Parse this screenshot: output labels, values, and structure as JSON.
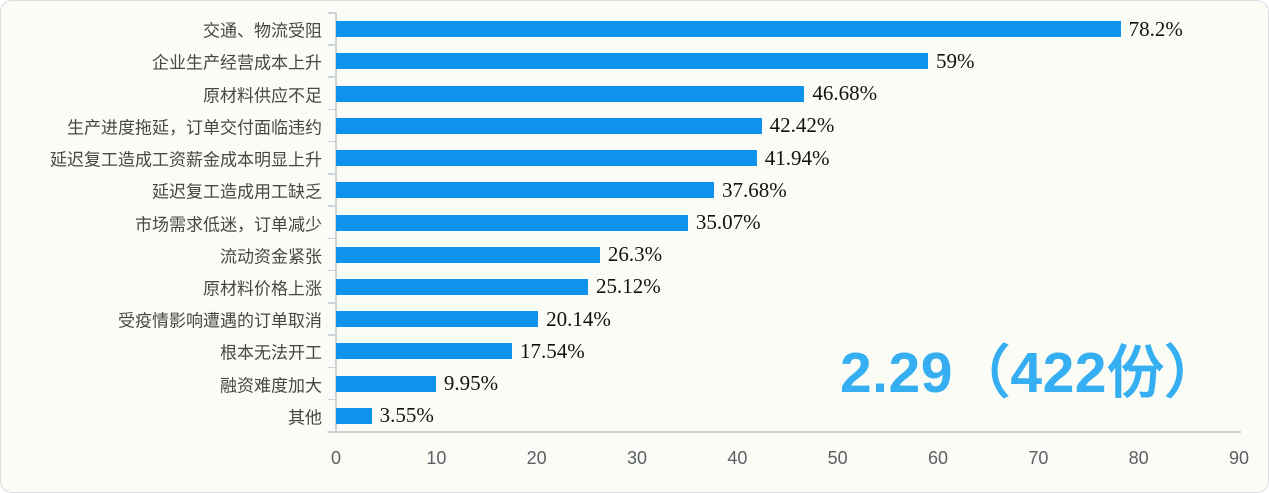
{
  "chart_data": {
    "type": "bar",
    "orientation": "horizontal",
    "title": "",
    "xlabel": "",
    "ylabel": "",
    "grid": false,
    "legend": false,
    "xlim": [
      0,
      90
    ],
    "x_ticks": [
      "0",
      "10",
      "20",
      "30",
      "40",
      "50",
      "60",
      "70",
      "80",
      "90"
    ],
    "categories": [
      "交通、物流受阻",
      "企业生产经营成本上升",
      "原材料供应不足",
      "生产进度拖延，订单交付面临违约",
      "延迟复工造成工资薪金成本明显上升",
      "延迟复工造成用工缺乏",
      "市场需求低迷，订单减少",
      "流动资金紧张",
      "原材料价格上涨",
      "受疫情影响遭遇的订单取消",
      "根本无法开工",
      "融资难度加大",
      "其他"
    ],
    "values": [
      78.2,
      59,
      46.68,
      42.42,
      41.94,
      37.68,
      35.07,
      26.3,
      25.12,
      20.14,
      17.54,
      9.95,
      3.55
    ],
    "value_labels": [
      "78.2%",
      "59%",
      "46.68%",
      "42.42%",
      "41.94%",
      "37.68%",
      "35.07%",
      "26.3%",
      "25.12%",
      "20.14%",
      "17.54%",
      "9.95%",
      "3.55%"
    ],
    "colors": {
      "bar": "#0e93ec",
      "category_label": "#474747",
      "value_label": "#121212",
      "axis_line": "#ccd3db",
      "tick_label": "#5b6066",
      "card_background": "#fbfcf6",
      "card_border": "#d9dde3"
    },
    "annotation": {
      "text": "2.29（422份）",
      "color": "#35aff2"
    }
  }
}
